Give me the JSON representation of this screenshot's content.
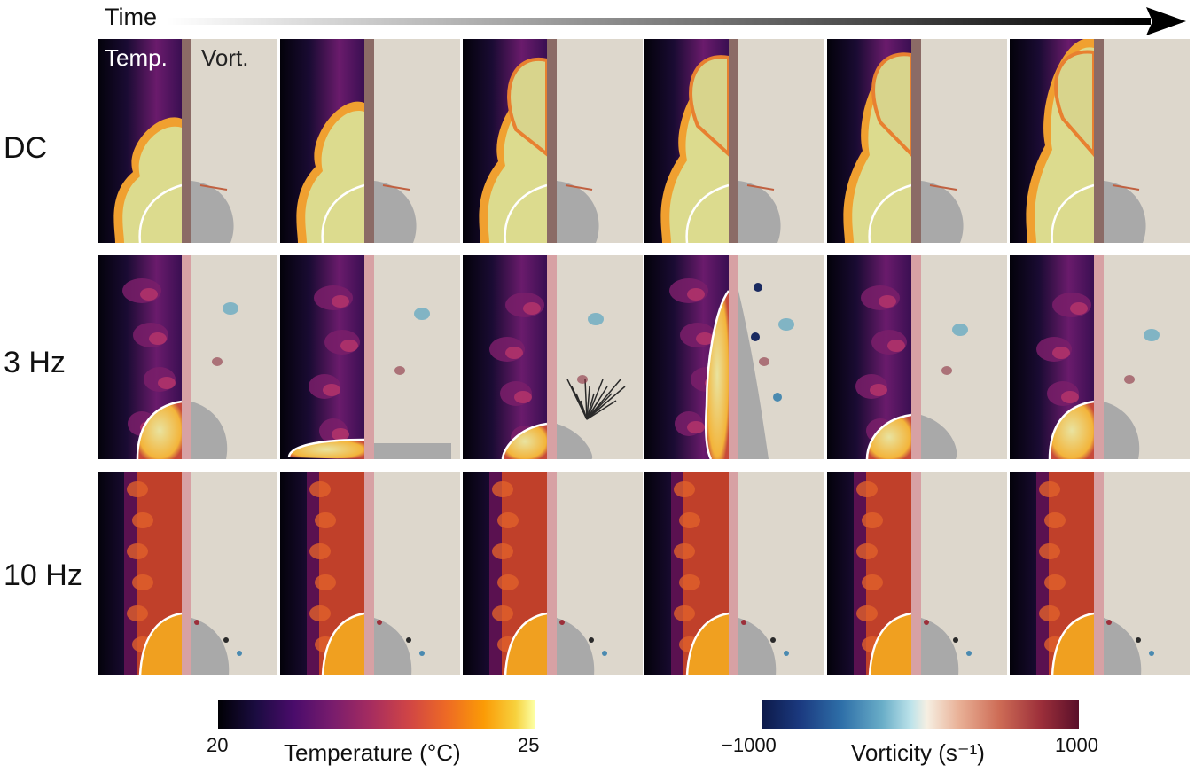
{
  "figure": {
    "time_label": "Time",
    "rows": [
      {
        "label": "DC",
        "regime": "dc"
      },
      {
        "label": "3 Hz",
        "regime": "3hz"
      },
      {
        "label": "10 Hz",
        "regime": "10hz"
      }
    ],
    "frames_per_row": 6,
    "panel_headers": {
      "temperature": "Temp.",
      "vorticity": "Vort."
    }
  },
  "colorbars": {
    "temperature": {
      "min_label": "20",
      "max_label": "25",
      "title": "Temperature (°C)",
      "colormap": "inferno"
    },
    "vorticity": {
      "min_label": "−1000",
      "max_label": "1000",
      "title": "Vorticity (s⁻¹)",
      "colormap": "diverging blue-red"
    }
  },
  "colors": {
    "bubble_fill_vort": "#a9a9a9",
    "vort_background": "#ddd7cc",
    "separator_dc": "#8b6b66",
    "separator_ac": "#d7a1a4",
    "contour": "#ffffff"
  }
}
